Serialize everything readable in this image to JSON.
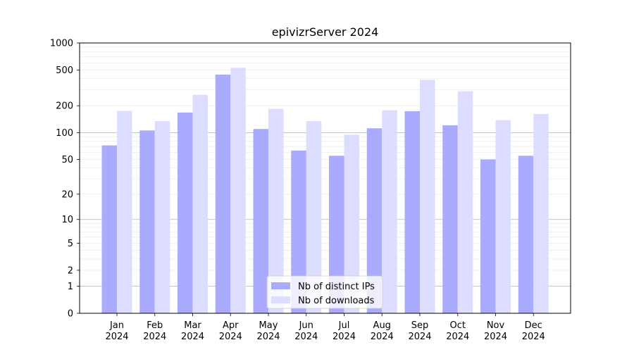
{
  "chart_data": {
    "type": "bar",
    "title": "epivizrServer 2024",
    "xlabel": "",
    "ylabel": "",
    "yscale": "log(1+y)",
    "ylim": [
      0,
      1000
    ],
    "yticks": [
      0,
      1,
      2,
      5,
      10,
      20,
      50,
      100,
      200,
      500,
      1000
    ],
    "grid": "horizontal",
    "legend_position": "bottom-center",
    "categories": [
      "Jan\n2024",
      "Feb\n2024",
      "Mar\n2024",
      "Apr\n2024",
      "May\n2024",
      "Jun\n2024",
      "Jul\n2024",
      "Aug\n2024",
      "Sep\n2024",
      "Oct\n2024",
      "Nov\n2024",
      "Dec\n2024"
    ],
    "series": [
      {
        "name": "Nb of distinct IPs",
        "color": "#aaaaff",
        "values": [
          72,
          106,
          168,
          445,
          110,
          63,
          55,
          112,
          174,
          121,
          50,
          55
        ]
      },
      {
        "name": "Nb of downloads",
        "color": "#ddddff",
        "values": [
          175,
          135,
          265,
          530,
          185,
          135,
          95,
          178,
          390,
          290,
          138,
          162
        ]
      }
    ]
  }
}
